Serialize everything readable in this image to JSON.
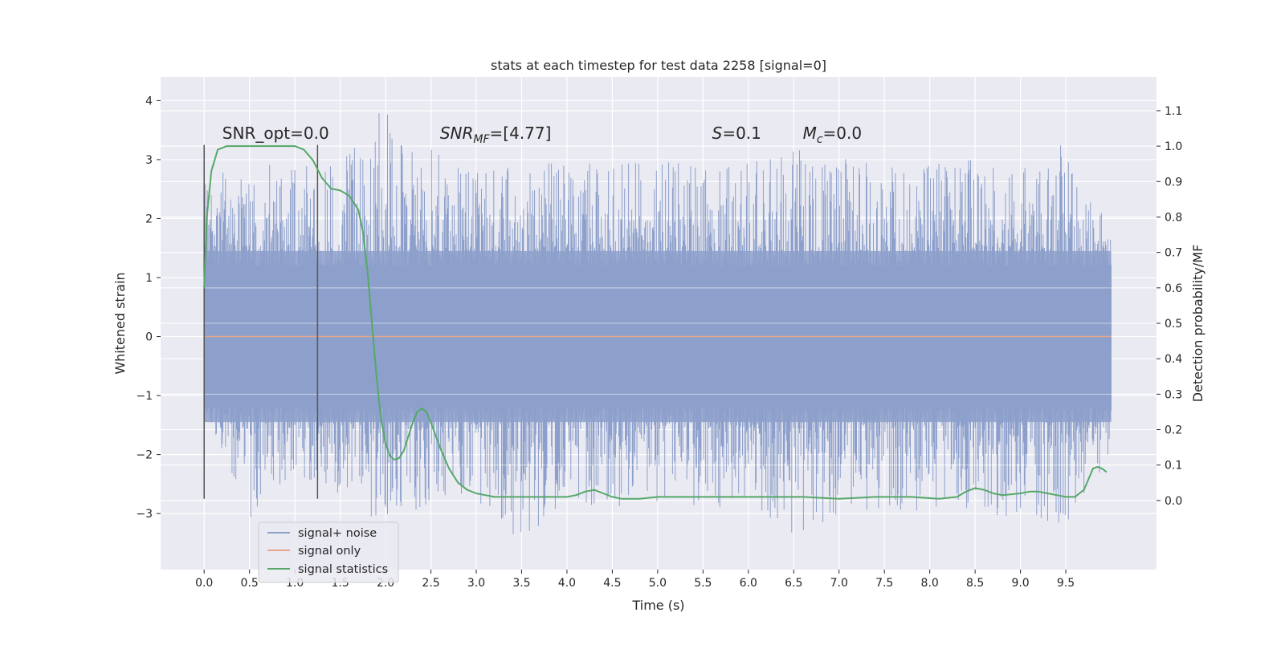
{
  "chart_data": {
    "type": "line",
    "title": "stats at each timestep for test data 2258 [signal=0]",
    "xlabel": "Time (s)",
    "ylabel": "Whitened strain",
    "ylabel_right": "Detection probability/MF",
    "xlim": [
      -0.48,
      10.5
    ],
    "ylim": [
      -3.95,
      4.4
    ],
    "ylim_right": [
      -0.195,
      1.195
    ],
    "x_ticks": [
      0.0,
      0.5,
      1.0,
      1.5,
      2.0,
      2.5,
      3.0,
      3.5,
      4.0,
      4.5,
      5.0,
      5.5,
      6.0,
      6.5,
      7.0,
      7.5,
      8.0,
      8.5,
      9.0,
      9.5
    ],
    "x_tick_labels": [
      "0.0",
      "0.5",
      "1.0",
      "1.5",
      "2.0",
      "2.5",
      "3.0",
      "3.5",
      "4.0",
      "4.5",
      "5.0",
      "5.5",
      "6.0",
      "6.5",
      "7.0",
      "7.5",
      "8.0",
      "8.5",
      "9.0",
      "9.5"
    ],
    "y_ticks": [
      -3,
      -2,
      -1,
      0,
      1,
      2,
      3,
      4
    ],
    "y_tick_labels": [
      "−3",
      "−2",
      "−1",
      "0",
      "1",
      "2",
      "3",
      "4"
    ],
    "y_ticks_right": [
      0.0,
      0.1,
      0.2,
      0.3,
      0.4,
      0.5,
      0.6,
      0.7,
      0.8,
      0.9,
      1.0,
      1.1
    ],
    "y_tick_labels_right": [
      "0.0",
      "0.1",
      "0.2",
      "0.3",
      "0.4",
      "0.5",
      "0.6",
      "0.7",
      "0.8",
      "0.9",
      "1.0",
      "1.1"
    ],
    "grid": true,
    "legend_position": "lower-left",
    "series": [
      {
        "name": "signal+ noise",
        "axis": "left",
        "color": "#8da0cb",
        "x_range": [
          0.0,
          10.0
        ],
        "envelope_upper": [
          [
            0.0,
            2.6
          ],
          [
            0.5,
            3.1
          ],
          [
            1.0,
            2.9
          ],
          [
            1.5,
            2.9
          ],
          [
            2.0,
            4.05
          ],
          [
            2.5,
            3.2
          ],
          [
            3.0,
            2.8
          ],
          [
            3.5,
            2.9
          ],
          [
            4.0,
            3.0
          ],
          [
            4.5,
            2.9
          ],
          [
            5.0,
            3.0
          ],
          [
            5.5,
            2.9
          ],
          [
            6.0,
            3.0
          ],
          [
            6.5,
            3.2
          ],
          [
            7.0,
            3.1
          ],
          [
            7.5,
            2.9
          ],
          [
            8.0,
            3.0
          ],
          [
            8.5,
            3.0
          ],
          [
            9.0,
            2.9
          ],
          [
            9.5,
            3.3
          ],
          [
            10.0,
            1.8
          ]
        ],
        "envelope_lower": [
          [
            0.0,
            -1.2
          ],
          [
            0.5,
            -3.1
          ],
          [
            1.0,
            -2.3
          ],
          [
            1.5,
            -2.9
          ],
          [
            2.0,
            -3.2
          ],
          [
            2.5,
            -2.9
          ],
          [
            3.0,
            -2.8
          ],
          [
            3.5,
            -3.55
          ],
          [
            4.0,
            -2.9
          ],
          [
            4.5,
            -2.9
          ],
          [
            5.0,
            -2.8
          ],
          [
            5.5,
            -3.1
          ],
          [
            6.0,
            -2.9
          ],
          [
            6.5,
            -3.45
          ],
          [
            7.0,
            -3.0
          ],
          [
            7.5,
            -2.9
          ],
          [
            8.0,
            -3.0
          ],
          [
            8.5,
            -3.0
          ],
          [
            9.0,
            -3.2
          ],
          [
            9.5,
            -3.25
          ],
          [
            10.0,
            -2.3
          ]
        ]
      },
      {
        "name": "signal only",
        "axis": "left",
        "color": "#e5a58e",
        "x": [
          0.0,
          10.0
        ],
        "y": [
          0.0,
          0.0
        ]
      },
      {
        "name": "signal statistics",
        "axis": "right",
        "color": "#55a868",
        "x": [
          0.0,
          0.03,
          0.08,
          0.15,
          0.25,
          0.4,
          0.6,
          0.8,
          1.0,
          1.1,
          1.2,
          1.3,
          1.4,
          1.5,
          1.6,
          1.7,
          1.75,
          1.8,
          1.85,
          1.9,
          1.95,
          2.0,
          2.05,
          2.1,
          2.15,
          2.2,
          2.25,
          2.3,
          2.35,
          2.4,
          2.45,
          2.5,
          2.6,
          2.7,
          2.8,
          2.9,
          3.0,
          3.1,
          3.2,
          3.3,
          3.5,
          3.8,
          4.0,
          4.1,
          4.2,
          4.3,
          4.4,
          4.5,
          4.6,
          4.8,
          5.0,
          5.3,
          5.6,
          6.0,
          6.3,
          6.6,
          7.0,
          7.4,
          7.8,
          8.1,
          8.3,
          8.4,
          8.5,
          8.6,
          8.7,
          8.8,
          9.0,
          9.1,
          9.2,
          9.3,
          9.4,
          9.5,
          9.6,
          9.7,
          9.75,
          9.8,
          9.85,
          9.9,
          9.95
        ],
        "y": [
          0.6,
          0.8,
          0.93,
          0.99,
          1.0,
          1.0,
          1.0,
          1.0,
          1.0,
          0.99,
          0.96,
          0.91,
          0.88,
          0.875,
          0.86,
          0.82,
          0.76,
          0.65,
          0.5,
          0.35,
          0.23,
          0.16,
          0.125,
          0.115,
          0.12,
          0.14,
          0.18,
          0.22,
          0.25,
          0.26,
          0.25,
          0.22,
          0.15,
          0.09,
          0.05,
          0.03,
          0.02,
          0.015,
          0.01,
          0.01,
          0.01,
          0.01,
          0.01,
          0.015,
          0.025,
          0.03,
          0.02,
          0.01,
          0.005,
          0.005,
          0.01,
          0.01,
          0.01,
          0.01,
          0.01,
          0.01,
          0.005,
          0.01,
          0.01,
          0.005,
          0.01,
          0.025,
          0.035,
          0.03,
          0.02,
          0.015,
          0.02,
          0.025,
          0.025,
          0.02,
          0.015,
          0.01,
          0.01,
          0.03,
          0.06,
          0.09,
          0.095,
          0.09,
          0.08
        ]
      }
    ],
    "vertical_markers": [
      {
        "x": 0.0,
        "y_range": [
          -2.75,
          3.25
        ],
        "color": "#555555"
      },
      {
        "x": 1.25,
        "y_range": [
          -2.75,
          3.25
        ],
        "color": "#555555"
      }
    ],
    "annotations": [
      {
        "text": "SNR_opt=0.0",
        "x": 0.2,
        "y": 3.3
      },
      {
        "text": "SNR",
        "sub": "MF",
        "suffix": "=[4.77]",
        "italic": true,
        "x": 2.6,
        "y": 3.3
      },
      {
        "text": "S",
        "suffix": "=0.1",
        "italic": true,
        "x": 5.6,
        "y": 3.3
      },
      {
        "text": "M",
        "sub": "c",
        "suffix": "=0.0",
        "italic": true,
        "x": 6.6,
        "y": 3.3
      }
    ]
  }
}
